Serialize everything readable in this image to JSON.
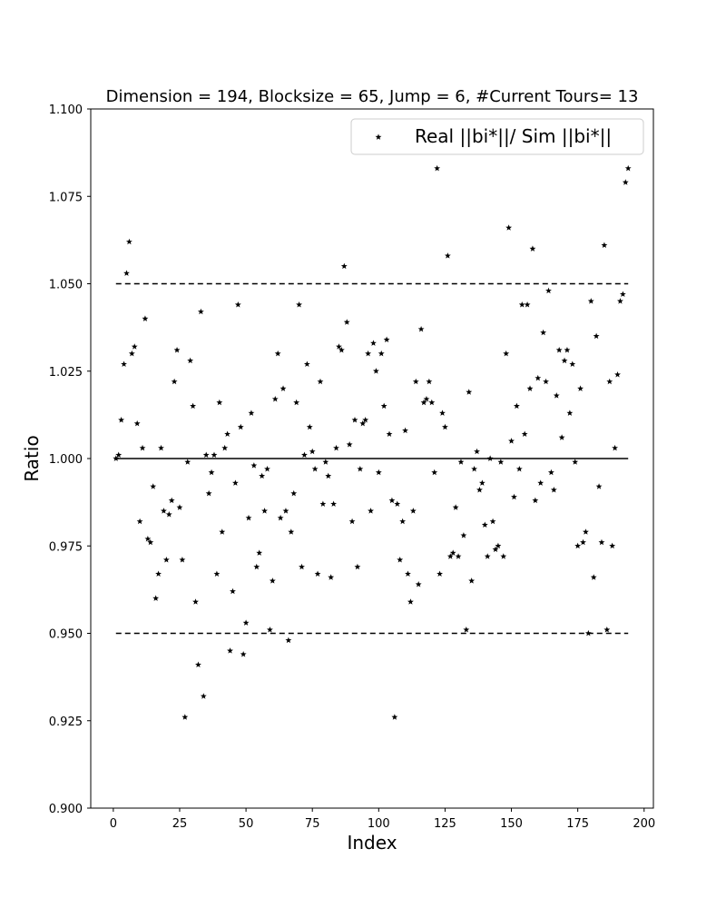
{
  "chart_data": {
    "type": "scatter",
    "title": "Dimension = 194, Blocksize = 65, Jump = 6, #Current Tours= 13",
    "xlabel": "Index",
    "ylabel": "Ratio",
    "xlim": [
      -8.5,
      203.5
    ],
    "ylim": [
      0.9,
      1.1
    ],
    "xticks": [
      0,
      25,
      50,
      75,
      100,
      125,
      150,
      175,
      200
    ],
    "xtick_labels": [
      "0",
      "25",
      "50",
      "75",
      "100",
      "125",
      "150",
      "175",
      "200"
    ],
    "yticks": [
      0.9,
      0.925,
      0.95,
      0.975,
      1.0,
      1.025,
      1.05,
      1.075,
      1.1
    ],
    "ytick_labels": [
      "0.900",
      "0.925",
      "0.950",
      "0.975",
      "1.000",
      "1.025",
      "1.050",
      "1.075",
      "1.100"
    ],
    "grid": false,
    "legend_position": "top-right",
    "series": [
      {
        "name": "Real ||bi*||/ Sim ||bi*||",
        "marker": "star",
        "color": "#000000",
        "x": [
          1,
          2,
          3,
          4,
          5,
          6,
          7,
          8,
          9,
          10,
          11,
          12,
          13,
          14,
          15,
          16,
          17,
          18,
          19,
          20,
          21,
          22,
          23,
          24,
          25,
          26,
          27,
          28,
          29,
          30,
          31,
          32,
          33,
          34,
          35,
          36,
          37,
          38,
          39,
          40,
          41,
          42,
          43,
          44,
          45,
          46,
          47,
          48,
          49,
          50,
          51,
          52,
          53,
          54,
          55,
          56,
          57,
          58,
          59,
          60,
          61,
          62,
          63,
          64,
          65,
          66,
          67,
          68,
          69,
          70,
          71,
          72,
          73,
          74,
          75,
          76,
          77,
          78,
          79,
          80,
          81,
          82,
          83,
          84,
          85,
          86,
          87,
          88,
          89,
          90,
          91,
          92,
          93,
          94,
          95,
          96,
          97,
          98,
          99,
          100,
          101,
          102,
          103,
          104,
          105,
          106,
          107,
          108,
          109,
          110,
          111,
          112,
          113,
          114,
          115,
          116,
          117,
          118,
          119,
          120,
          121,
          122,
          123,
          124,
          125,
          126,
          127,
          128,
          129,
          130,
          131,
          132,
          133,
          134,
          135,
          136,
          137,
          138,
          139,
          140,
          141,
          142,
          143,
          144,
          145,
          146,
          147,
          148,
          149,
          150,
          151,
          152,
          153,
          154,
          155,
          156,
          157,
          158,
          159,
          160,
          161,
          162,
          163,
          164,
          165,
          166,
          167,
          168,
          169,
          170,
          171,
          172,
          173,
          174,
          175,
          176,
          177,
          178,
          179,
          180,
          181,
          182,
          183,
          184,
          185,
          186,
          187,
          188,
          189,
          190,
          191,
          192,
          193,
          194
        ],
        "y": [
          1.0,
          1.001,
          1.011,
          1.027,
          1.053,
          1.062,
          1.03,
          1.032,
          1.01,
          0.982,
          1.003,
          1.04,
          0.977,
          0.976,
          0.992,
          0.96,
          0.967,
          1.003,
          0.985,
          0.971,
          0.984,
          0.988,
          1.022,
          1.031,
          0.986,
          0.971,
          0.926,
          0.999,
          1.028,
          1.015,
          0.959,
          0.941,
          1.042,
          0.932,
          1.001,
          0.99,
          0.996,
          1.001,
          0.967,
          1.016,
          0.979,
          1.003,
          1.007,
          0.945,
          0.962,
          0.993,
          1.044,
          1.009,
          0.944,
          0.953,
          0.983,
          1.013,
          0.998,
          0.969,
          0.973,
          0.995,
          0.985,
          0.997,
          0.951,
          0.965,
          1.017,
          1.03,
          0.983,
          1.02,
          0.985,
          0.948,
          0.979,
          0.99,
          1.016,
          1.044,
          0.969,
          1.001,
          1.027,
          1.009,
          1.002,
          0.997,
          0.967,
          1.022,
          0.987,
          0.999,
          0.995,
          0.966,
          0.987,
          1.003,
          1.032,
          1.031,
          1.055,
          1.039,
          1.004,
          0.982,
          1.011,
          0.969,
          0.997,
          1.01,
          1.011,
          1.03,
          0.985,
          1.033,
          1.025,
          0.996,
          1.03,
          1.015,
          1.034,
          1.007,
          0.988,
          0.926,
          0.987,
          0.971,
          0.982,
          1.008,
          0.967,
          0.959,
          0.985,
          1.022,
          0.964,
          1.037,
          1.016,
          1.017,
          1.022,
          1.016,
          0.996,
          1.083,
          0.967,
          1.013,
          1.009,
          1.058,
          0.972,
          0.973,
          0.986,
          0.972,
          0.999,
          0.978,
          0.951,
          1.019,
          0.965,
          0.997,
          1.002,
          0.991,
          0.993,
          0.981,
          0.972,
          1.0,
          0.982,
          0.974,
          0.975,
          0.999,
          0.972,
          1.03,
          1.066,
          1.005,
          0.989,
          1.015,
          0.997,
          1.044,
          1.007,
          1.044,
          1.02,
          1.06,
          0.988,
          1.023,
          0.993,
          1.036,
          1.022,
          1.048,
          0.996,
          0.991,
          1.018,
          1.031,
          1.006,
          1.028,
          1.031,
          1.013,
          1.027,
          0.999,
          0.975,
          1.02,
          0.976,
          0.979,
          0.95,
          1.045,
          0.966,
          1.035,
          0.992,
          0.976,
          1.061,
          0.951,
          1.022,
          0.975,
          1.003,
          1.024,
          1.045,
          1.047,
          1.079,
          1.083
        ]
      }
    ],
    "reference_lines": [
      {
        "y": 1.0,
        "style": "solid",
        "x_range": [
          1,
          194
        ]
      },
      {
        "y": 1.05,
        "style": "dashed",
        "x_range": [
          1,
          194
        ]
      },
      {
        "y": 0.95,
        "style": "dashed",
        "x_range": [
          1,
          194
        ]
      }
    ]
  }
}
